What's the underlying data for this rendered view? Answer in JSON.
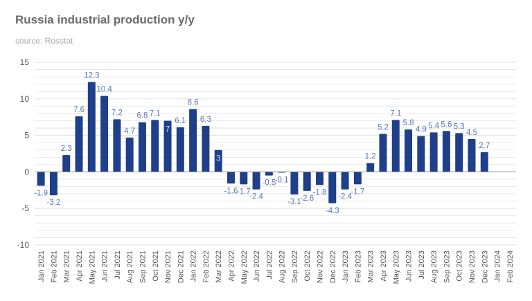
{
  "chart_data": {
    "type": "bar",
    "title": "Russia industrial production y/y",
    "subtitle": "source: Rosstat",
    "xlabel": "",
    "ylabel": "",
    "ylim": [
      -10,
      15
    ],
    "yticks": [
      15,
      10,
      5,
      0,
      -5,
      -10
    ],
    "grid": true,
    "legend": "none",
    "colors": {
      "bar": "#1f3f8a",
      "label": "#5a77b5",
      "label_inside": "#d8e0f0",
      "grid": "#e3e3e3",
      "zero_line": "#888888"
    },
    "categories": [
      "Jan 2021",
      "Feb 2021",
      "Mar 2021",
      "Apr 2021",
      "May 2021",
      "Jun 2021",
      "Jul 2021",
      "Aug 2021",
      "Sep 2021",
      "Oct 2021",
      "Nov 2021",
      "Dec 2021",
      "Jan 2022",
      "Feb 2022",
      "Mar 2022",
      "Apr 2022",
      "May 2022",
      "Jun 2022",
      "Jul 2022",
      "Aug 2022",
      "Sep 2022",
      "Oct 2022",
      "Nov 2022",
      "Dec 2022",
      "Jan 2023",
      "Feb 2023",
      "Mar 2023",
      "Apr 2023",
      "May 2023",
      "Jun 2023",
      "Jul 2023",
      "Aug 2023",
      "Sep 2023",
      "Oct 2023",
      "Nov 2023",
      "Dec 2023",
      "Jan 2024",
      "Feb 2024"
    ],
    "values": [
      -1.9,
      -3.2,
      2.3,
      7.6,
      12.3,
      10.4,
      7.2,
      4.7,
      6.8,
      7.1,
      7,
      6.1,
      8.6,
      6.3,
      3,
      -1.6,
      -1.7,
      -2.4,
      -0.5,
      -0.1,
      -3.1,
      -2.6,
      -1.8,
      -4.3,
      -2.4,
      -1.7,
      1.2,
      5.2,
      7.1,
      5.8,
      4.9,
      5.4,
      5.6,
      5.3,
      4.5,
      2.7,
      null,
      null
    ],
    "labels": [
      "-1.9",
      "-3.2",
      "2.3",
      "7.6",
      "12.3",
      "10.4",
      "7.2",
      "4.7",
      "6.8",
      "7.1",
      "7",
      "6.1",
      "8.6",
      "6.3",
      "3",
      "-1.6",
      "-1.7",
      "-2.4",
      "-0.5",
      "-0.1",
      "-3.1",
      "-2.6",
      "-1.8",
      "-4.3",
      "-2.4",
      "-1.7",
      "1.2",
      "5.2",
      "7.1",
      "5.8",
      "4.9",
      "5.4",
      "5.6",
      "5.3",
      "4.5",
      "2.7",
      "",
      ""
    ],
    "labels_inside": [
      "Nov 2021",
      "Mar 2022"
    ]
  }
}
